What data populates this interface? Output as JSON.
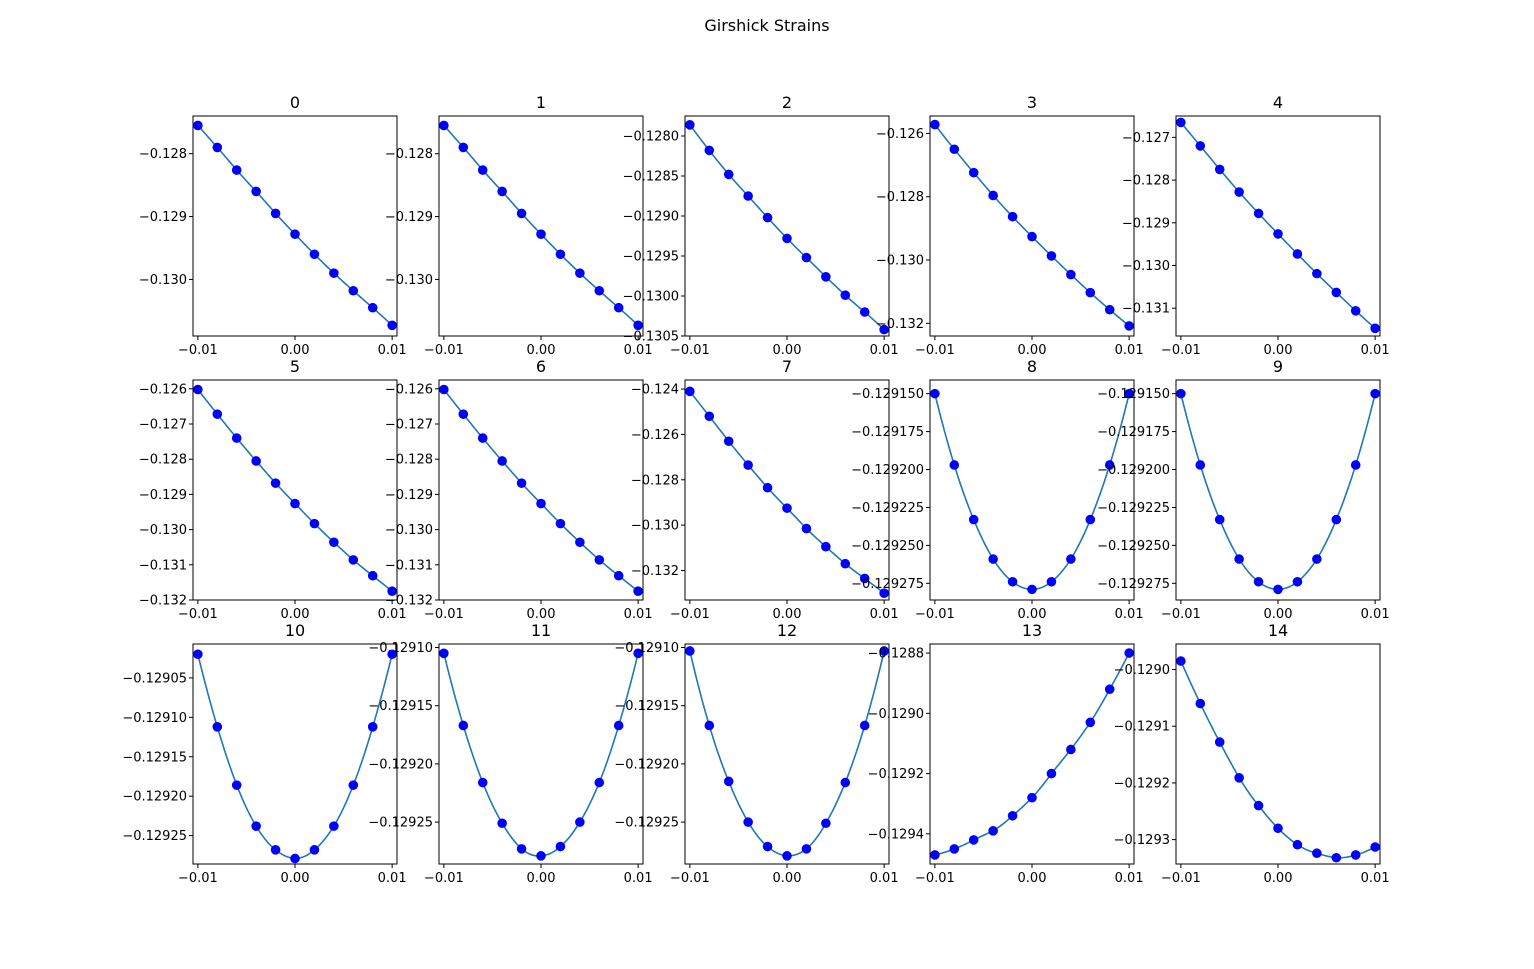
{
  "figure": {
    "title": "Girshick Strains",
    "colors": {
      "line": "#1f77b4",
      "marker": "#0000ff"
    }
  },
  "chart_data": [
    {
      "type": "line",
      "title": "0",
      "x": [
        -0.01,
        -0.008,
        -0.006,
        -0.004,
        -0.002,
        0.0,
        0.002,
        0.004,
        0.006,
        0.008,
        0.01
      ],
      "y": [
        -0.12755,
        -0.1279,
        -0.12826,
        -0.1286,
        -0.12895,
        -0.12928,
        -0.1296,
        -0.1299,
        -0.13018,
        -0.13045,
        -0.13073
      ],
      "xlim": [
        -0.0105,
        0.0105
      ],
      "ylim": [
        -0.1309,
        -0.1274
      ],
      "xticks": [
        -0.01,
        0.0,
        0.01
      ],
      "xticklabels": [
        "−0.01",
        "0.00",
        "0.01"
      ],
      "yticks": [
        -0.128,
        -0.129,
        -0.13
      ],
      "yticklabels": [
        "−0.128",
        "−0.129",
        "−0.130"
      ]
    },
    {
      "type": "line",
      "title": "1",
      "x": [
        -0.01,
        -0.008,
        -0.006,
        -0.004,
        -0.002,
        0.0,
        0.002,
        0.004,
        0.006,
        0.008,
        0.01
      ],
      "y": [
        -0.12755,
        -0.1279,
        -0.12826,
        -0.1286,
        -0.12895,
        -0.12928,
        -0.1296,
        -0.1299,
        -0.13018,
        -0.13045,
        -0.13073
      ],
      "xlim": [
        -0.0105,
        0.0105
      ],
      "ylim": [
        -0.1309,
        -0.1274
      ],
      "xticks": [
        -0.01,
        0.0,
        0.01
      ],
      "xticklabels": [
        "−0.01",
        "0.00",
        "0.01"
      ],
      "yticks": [
        -0.128,
        -0.129,
        -0.13
      ],
      "yticklabels": [
        "−0.128",
        "−0.129",
        "−0.130"
      ]
    },
    {
      "type": "line",
      "title": "2",
      "x": [
        -0.01,
        -0.008,
        -0.006,
        -0.004,
        -0.002,
        0.0,
        0.002,
        0.004,
        0.006,
        0.008,
        0.01
      ],
      "y": [
        -0.12786,
        -0.12818,
        -0.12848,
        -0.12875,
        -0.12902,
        -0.12928,
        -0.12952,
        -0.12976,
        -0.12999,
        -0.1302,
        -0.13042
      ],
      "xlim": [
        -0.0105,
        0.0105
      ],
      "ylim": [
        -0.1305,
        -0.12775
      ],
      "xticks": [
        -0.01,
        0.0,
        0.01
      ],
      "xticklabels": [
        "−0.01",
        "0.00",
        "0.01"
      ],
      "yticks": [
        -0.128,
        -0.1285,
        -0.129,
        -0.1295,
        -0.13,
        -0.1305
      ],
      "yticklabels": [
        "−0.1280",
        "−0.1285",
        "−0.1290",
        "−0.1295",
        "−0.1300",
        "−0.1305"
      ]
    },
    {
      "type": "line",
      "title": "3",
      "x": [
        -0.01,
        -0.008,
        -0.006,
        -0.004,
        -0.002,
        0.0,
        0.002,
        0.004,
        0.006,
        0.008,
        0.01
      ],
      "y": [
        -0.12572,
        -0.1265,
        -0.12724,
        -0.12796,
        -0.12863,
        -0.12926,
        -0.12987,
        -0.13046,
        -0.13103,
        -0.13157,
        -0.13208
      ],
      "xlim": [
        -0.0105,
        0.0105
      ],
      "ylim": [
        -0.1324,
        -0.12545
      ],
      "xticks": [
        -0.01,
        0.0,
        0.01
      ],
      "xticklabels": [
        "−0.01",
        "0.00",
        "0.01"
      ],
      "yticks": [
        -0.126,
        -0.128,
        -0.13,
        -0.132
      ],
      "yticklabels": [
        "−0.126",
        "−0.128",
        "−0.130",
        "−0.132"
      ]
    },
    {
      "type": "line",
      "title": "4",
      "x": [
        -0.01,
        -0.008,
        -0.006,
        -0.004,
        -0.002,
        0.0,
        0.002,
        0.004,
        0.006,
        0.008,
        0.01
      ],
      "y": [
        -0.12665,
        -0.1272,
        -0.12775,
        -0.12828,
        -0.12878,
        -0.12926,
        -0.12973,
        -0.13019,
        -0.13063,
        -0.13106,
        -0.13147
      ],
      "xlim": [
        -0.0105,
        0.0105
      ],
      "ylim": [
        -0.13165,
        -0.1265
      ],
      "xticks": [
        -0.01,
        0.0,
        0.01
      ],
      "xticklabels": [
        "−0.01",
        "0.00",
        "0.01"
      ],
      "yticks": [
        -0.127,
        -0.128,
        -0.129,
        -0.13,
        -0.131
      ],
      "yticklabels": [
        "−0.127",
        "−0.128",
        "−0.129",
        "−0.130",
        "−0.131"
      ]
    },
    {
      "type": "line",
      "title": "5",
      "x": [
        -0.01,
        -0.008,
        -0.006,
        -0.004,
        -0.002,
        0.0,
        0.002,
        0.004,
        0.006,
        0.008,
        0.01
      ],
      "y": [
        -0.12602,
        -0.12672,
        -0.1274,
        -0.12805,
        -0.12868,
        -0.12926,
        -0.12983,
        -0.13036,
        -0.13086,
        -0.13131,
        -0.13175
      ],
      "xlim": [
        -0.0105,
        0.0105
      ],
      "ylim": [
        -0.132,
        -0.12575
      ],
      "xticks": [
        -0.01,
        0.0,
        0.01
      ],
      "xticklabels": [
        "−0.01",
        "0.00",
        "0.01"
      ],
      "yticks": [
        -0.126,
        -0.127,
        -0.128,
        -0.129,
        -0.13,
        -0.131,
        -0.132
      ],
      "yticklabels": [
        "−0.126",
        "−0.127",
        "−0.128",
        "−0.129",
        "−0.130",
        "−0.131",
        "−0.132"
      ]
    },
    {
      "type": "line",
      "title": "6",
      "x": [
        -0.01,
        -0.008,
        -0.006,
        -0.004,
        -0.002,
        0.0,
        0.002,
        0.004,
        0.006,
        0.008,
        0.01
      ],
      "y": [
        -0.12602,
        -0.12672,
        -0.1274,
        -0.12805,
        -0.12868,
        -0.12926,
        -0.12983,
        -0.13036,
        -0.13086,
        -0.13131,
        -0.13175
      ],
      "xlim": [
        -0.0105,
        0.0105
      ],
      "ylim": [
        -0.132,
        -0.12575
      ],
      "xticks": [
        -0.01,
        0.0,
        0.01
      ],
      "xticklabels": [
        "−0.01",
        "0.00",
        "0.01"
      ],
      "yticks": [
        -0.126,
        -0.127,
        -0.128,
        -0.129,
        -0.13,
        -0.131,
        -0.132
      ],
      "yticklabels": [
        "−0.126",
        "−0.127",
        "−0.128",
        "−0.129",
        "−0.130",
        "−0.131",
        "−0.132"
      ]
    },
    {
      "type": "line",
      "title": "7",
      "x": [
        -0.01,
        -0.008,
        -0.006,
        -0.004,
        -0.002,
        0.0,
        0.002,
        0.004,
        0.006,
        0.008,
        0.01
      ],
      "y": [
        -0.1241,
        -0.1252,
        -0.1263,
        -0.12735,
        -0.12835,
        -0.12925,
        -0.13015,
        -0.13095,
        -0.1317,
        -0.13235,
        -0.133
      ],
      "xlim": [
        -0.0105,
        0.0105
      ],
      "ylim": [
        -0.1333,
        -0.1236
      ],
      "xticks": [
        -0.01,
        0.0,
        0.01
      ],
      "xticklabels": [
        "−0.01",
        "0.00",
        "0.01"
      ],
      "yticks": [
        -0.124,
        -0.126,
        -0.128,
        -0.13,
        -0.132
      ],
      "yticklabels": [
        "−0.124",
        "−0.126",
        "−0.128",
        "−0.130",
        "−0.132"
      ]
    },
    {
      "type": "line",
      "title": "8",
      "x": [
        -0.01,
        -0.008,
        -0.006,
        -0.004,
        -0.002,
        0.0,
        0.002,
        0.004,
        0.006,
        0.008,
        0.01
      ],
      "y": [
        -0.12915,
        -0.129197,
        -0.129233,
        -0.129259,
        -0.129274,
        -0.129279,
        -0.129274,
        -0.129259,
        -0.129233,
        -0.129197,
        -0.12915
      ],
      "xlim": [
        -0.0105,
        0.0105
      ],
      "ylim": [
        -0.129286,
        -0.129141
      ],
      "xticks": [
        -0.01,
        0.0,
        0.01
      ],
      "xticklabels": [
        "−0.01",
        "0.00",
        "0.01"
      ],
      "yticks": [
        -0.12915,
        -0.129175,
        -0.1292,
        -0.129225,
        -0.12925,
        -0.129275
      ],
      "yticklabels": [
        "−0.129150",
        "−0.129175",
        "−0.129200",
        "−0.129225",
        "−0.129250",
        "−0.129275"
      ]
    },
    {
      "type": "line",
      "title": "9",
      "x": [
        -0.01,
        -0.008,
        -0.006,
        -0.004,
        -0.002,
        0.0,
        0.002,
        0.004,
        0.006,
        0.008,
        0.01
      ],
      "y": [
        -0.12915,
        -0.129197,
        -0.129233,
        -0.129259,
        -0.129274,
        -0.129279,
        -0.129274,
        -0.129259,
        -0.129233,
        -0.129197,
        -0.12915
      ],
      "xlim": [
        -0.0105,
        0.0105
      ],
      "ylim": [
        -0.129286,
        -0.129141
      ],
      "xticks": [
        -0.01,
        0.0,
        0.01
      ],
      "xticklabels": [
        "−0.01",
        "0.00",
        "0.01"
      ],
      "yticks": [
        -0.12915,
        -0.129175,
        -0.1292,
        -0.129225,
        -0.12925,
        -0.129275
      ],
      "yticklabels": [
        "−0.129150",
        "−0.129175",
        "−0.129200",
        "−0.129225",
        "−0.129250",
        "−0.129275"
      ]
    },
    {
      "type": "line",
      "title": "10",
      "x": [
        -0.01,
        -0.008,
        -0.006,
        -0.004,
        -0.002,
        0.0,
        0.002,
        0.004,
        0.006,
        0.008,
        0.01
      ],
      "y": [
        -0.12902,
        -0.129112,
        -0.129186,
        -0.129238,
        -0.129268,
        -0.129279,
        -0.129268,
        -0.129238,
        -0.129186,
        -0.129112,
        -0.12902
      ],
      "xlim": [
        -0.0105,
        0.0105
      ],
      "ylim": [
        -0.129286,
        -0.129007
      ],
      "xticks": [
        -0.01,
        0.0,
        0.01
      ],
      "xticklabels": [
        "−0.01",
        "0.00",
        "0.01"
      ],
      "yticks": [
        -0.12905,
        -0.1291,
        -0.12915,
        -0.1292,
        -0.12925
      ],
      "yticklabels": [
        "−0.12905",
        "−0.12910",
        "−0.12915",
        "−0.12920",
        "−0.12925"
      ]
    },
    {
      "type": "line",
      "title": "11",
      "x": [
        -0.01,
        -0.008,
        -0.006,
        -0.004,
        -0.002,
        0.0,
        0.002,
        0.004,
        0.006,
        0.008,
        0.01
      ],
      "y": [
        -0.129105,
        -0.129167,
        -0.129216,
        -0.129251,
        -0.129273,
        -0.129279,
        -0.129271,
        -0.12925,
        -0.129216,
        -0.129167,
        -0.129105
      ],
      "xlim": [
        -0.0105,
        0.0105
      ],
      "ylim": [
        -0.129286,
        -0.129097
      ],
      "xticks": [
        -0.01,
        0.0,
        0.01
      ],
      "xticklabels": [
        "−0.01",
        "0.00",
        "0.01"
      ],
      "yticks": [
        -0.1291,
        -0.12915,
        -0.1292,
        -0.12925
      ],
      "yticklabels": [
        "−0.12910",
        "−0.12915",
        "−0.12920",
        "−0.12925"
      ]
    },
    {
      "type": "line",
      "title": "12",
      "x": [
        -0.01,
        -0.008,
        -0.006,
        -0.004,
        -0.002,
        0.0,
        0.002,
        0.004,
        0.006,
        0.008,
        0.01
      ],
      "y": [
        -0.129103,
        -0.129167,
        -0.129215,
        -0.12925,
        -0.129271,
        -0.129279,
        -0.129273,
        -0.129251,
        -0.129216,
        -0.129167,
        -0.129103
      ],
      "xlim": [
        -0.0105,
        0.0105
      ],
      "ylim": [
        -0.129286,
        -0.129097
      ],
      "xticks": [
        -0.01,
        0.0,
        0.01
      ],
      "xticklabels": [
        "−0.01",
        "0.00",
        "0.01"
      ],
      "yticks": [
        -0.1291,
        -0.12915,
        -0.1292,
        -0.12925
      ],
      "yticklabels": [
        "−0.12910",
        "−0.12915",
        "−0.12920",
        "−0.12925"
      ]
    },
    {
      "type": "line",
      "title": "13",
      "x": [
        -0.01,
        -0.008,
        -0.006,
        -0.004,
        -0.002,
        0.0,
        0.002,
        0.004,
        0.006,
        0.008,
        0.01
      ],
      "y": [
        -0.12947,
        -0.12945,
        -0.12942,
        -0.12939,
        -0.12934,
        -0.12928,
        -0.1292,
        -0.12912,
        -0.12903,
        -0.12892,
        -0.1288
      ],
      "xlim": [
        -0.0105,
        0.0105
      ],
      "ylim": [
        -0.1295,
        -0.12877
      ],
      "xticks": [
        -0.01,
        0.0,
        0.01
      ],
      "xticklabels": [
        "−0.01",
        "0.00",
        "0.01"
      ],
      "yticks": [
        -0.1288,
        -0.129,
        -0.1292,
        -0.1294
      ],
      "yticklabels": [
        "−0.1288",
        "−0.1290",
        "−0.1292",
        "−0.1294"
      ]
    },
    {
      "type": "line",
      "title": "14",
      "x": [
        -0.01,
        -0.008,
        -0.006,
        -0.004,
        -0.002,
        0.0,
        0.002,
        0.004,
        0.006,
        0.008,
        0.01
      ],
      "y": [
        -0.128985,
        -0.12906,
        -0.129128,
        -0.129191,
        -0.12924,
        -0.12928,
        -0.129309,
        -0.129324,
        -0.129332,
        -0.129327,
        -0.129313
      ],
      "xlim": [
        -0.0105,
        0.0105
      ],
      "ylim": [
        -0.129343,
        -0.128955
      ],
      "xticks": [
        -0.01,
        0.0,
        0.01
      ],
      "xticklabels": [
        "−0.01",
        "0.00",
        "0.01"
      ],
      "yticks": [
        -0.129,
        -0.1291,
        -0.1292,
        -0.1293
      ],
      "yticklabels": [
        "−0.1290",
        "−0.1291",
        "−0.1292",
        "−0.1293"
      ]
    }
  ]
}
